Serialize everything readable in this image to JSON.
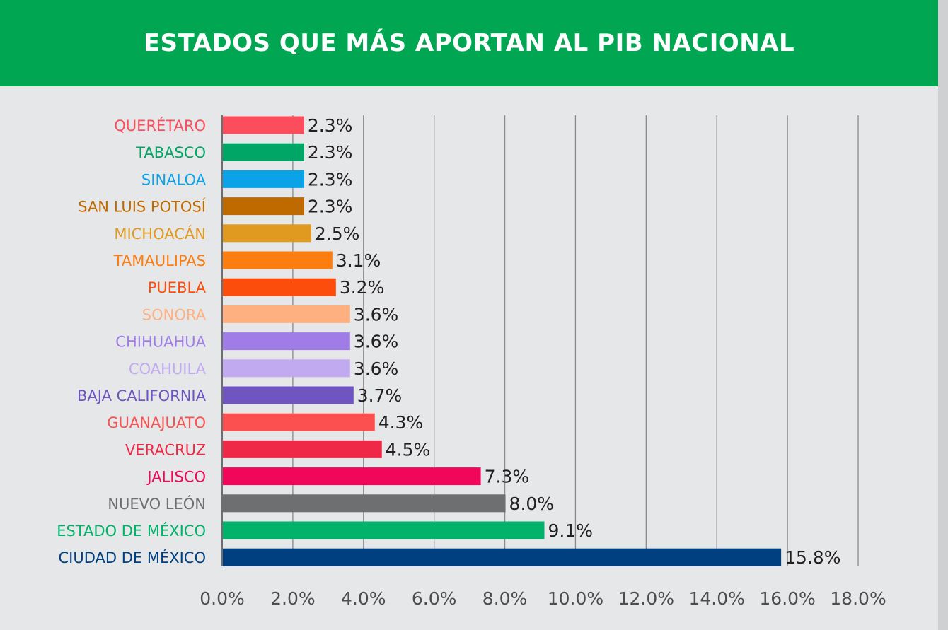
{
  "title": "ESTADOS QUE MÁS APORTAN AL PIB NACIONAL",
  "colors": {
    "header_bg": "#00a651",
    "panel_bg": "#e6e7e8",
    "grid": "#8a8a8a"
  },
  "chart_data": {
    "type": "bar",
    "orientation": "horizontal",
    "title": "ESTADOS QUE MÁS APORTAN AL PIB NACIONAL",
    "xlim": [
      0,
      18
    ],
    "xticks": [
      "0.0%",
      "2.0%",
      "4.0%",
      "6.0%",
      "8.0%",
      "10.0%",
      "12.0%",
      "14.0%",
      "16.0%",
      "18.0%"
    ],
    "grid": "vertical",
    "categories": [
      "QUERÉTARO",
      "TABASCO",
      "SINALOA",
      "SAN LUIS POTOSÍ",
      "MICHOACÁN",
      "TAMAULIPAS",
      "PUEBLA",
      "SONORA",
      "CHIHUAHUA",
      "COAHUILA",
      "BAJA CALIFORNIA",
      "GUANAJUATO",
      "VERACRUZ",
      "JALISCO",
      "NUEVO LEÓN",
      "ESTADO DE MÉXICO",
      "CIUDAD DE MÉXICO"
    ],
    "values": [
      2.3,
      2.3,
      2.3,
      2.3,
      2.5,
      3.1,
      3.2,
      3.6,
      3.6,
      3.6,
      3.7,
      4.3,
      4.5,
      7.3,
      8.0,
      9.1,
      15.8
    ],
    "value_labels": [
      "2.3%",
      "2.3%",
      "2.3%",
      "2.3%",
      "2.5%",
      "3.1%",
      "3.2%",
      "3.6%",
      "3.6%",
      "3.6%",
      "3.7%",
      "4.3%",
      "4.5%",
      "7.3%",
      "8.0%",
      "9.1%",
      "15.8%"
    ],
    "colors": [
      "#fc4d5d",
      "#00a665",
      "#0aa3e8",
      "#bf6a00",
      "#e09a20",
      "#fc7d12",
      "#fc4d0d",
      "#ffb080",
      "#a07ce6",
      "#c2aaf0",
      "#6e55c0",
      "#fc5050",
      "#f02848",
      "#f0075a",
      "#6e6f71",
      "#00b26a",
      "#003f80"
    ]
  }
}
